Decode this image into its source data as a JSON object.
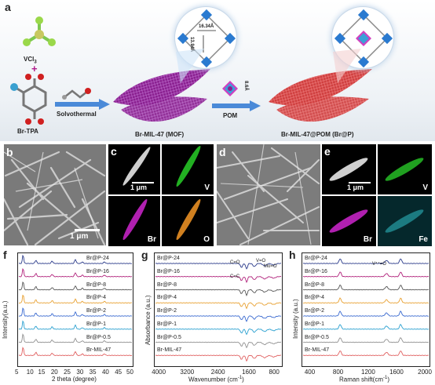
{
  "panel_a": {
    "label": "a",
    "reagent1": "VCl",
    "reagent1_sub": "3",
    "plus": "+",
    "reagent2": "Br-TPA",
    "step1": "Solvothermal",
    "product1": "Br-MIL-47 (MOF)",
    "step2": "POM",
    "pom_size": "8.6Å",
    "product2": "Br-MIL-47@POM (Br@P)",
    "pore_a": "16.34Å",
    "pore_b": "13.94Å"
  },
  "panel_b": {
    "label": "b",
    "scale": "1 μm"
  },
  "panel_c": {
    "label": "c",
    "scale": "1 μm",
    "maps": [
      "V",
      "Br",
      "O"
    ]
  },
  "panel_d": {
    "label": "d",
    "scale": "1 μm"
  },
  "panel_e": {
    "label": "e",
    "scale": "1 μm",
    "maps": [
      "V",
      "Br",
      "Fe"
    ]
  },
  "panel_f": {
    "label": "f",
    "ylabel": "Intensity(a.u.)",
    "xlabel": "2 theta (degree)",
    "ticks": [
      "5",
      "10",
      "15",
      "20",
      "25",
      "30",
      "35",
      "40",
      "45",
      "50"
    ],
    "series": [
      "Br@P-24",
      "Br@P-16",
      "Br@P-8",
      "Br@P-4",
      "Br@P-2",
      "Br@P-1",
      "Br@P-0.5",
      "Br-MIL-47"
    ]
  },
  "panel_g": {
    "label": "g",
    "ylabel": "Absorbance (a.u.)",
    "xlabel": "Wavenumber (cm",
    "xlabel_sup": "-1",
    "xlabel_end": ")",
    "ticks": [
      "4000",
      "3200",
      "2400",
      "1600",
      "800"
    ],
    "annot_co": "C=O",
    "annot_cc": "C=C",
    "annot_vo": "V=O",
    "annot_moo": "Mo=O",
    "series": [
      "Br@P-24",
      "Br@P-16",
      "Br@P-8",
      "Br@P-4",
      "Br@P-2",
      "Br@P-1",
      "Br@P-0.5",
      "Br-MIL-47"
    ]
  },
  "panel_h": {
    "label": "h",
    "ylabel": "Intensity (a.u.)",
    "xlabel": "Raman shift(cm",
    "xlabel_sup": "-1",
    "xlabel_end": ")",
    "ticks": [
      "400",
      "800",
      "1200",
      "1600",
      "2000"
    ],
    "annot": "V⁴⁺=O",
    "series": [
      "Br@P-24",
      "Br@P-16",
      "Br@P-8",
      "Br@P-4",
      "Br@P-2",
      "Br@P-1",
      "Br@P-0.5",
      "Br-MIL-47"
    ]
  },
  "colors": {
    "series": [
      "#2a3a8a",
      "#b0207a",
      "#555555",
      "#e8a030",
      "#3a6ad0",
      "#2aa0d0",
      "#909090",
      "#e06060"
    ],
    "mof": "#8a2090",
    "pom": "#d04040"
  }
}
